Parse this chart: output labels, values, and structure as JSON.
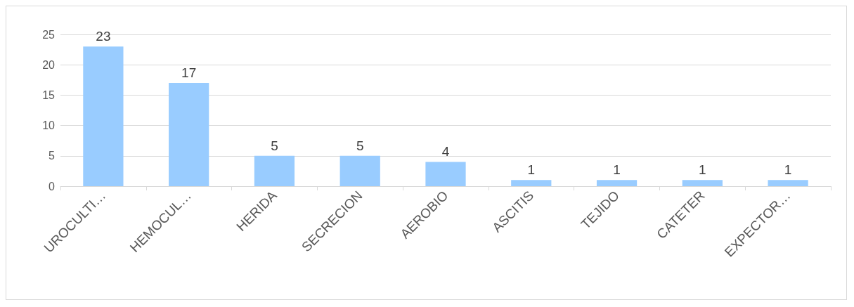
{
  "chart_data": {
    "type": "bar",
    "categories": [
      "UROCULTI…",
      "HEMOCUL…",
      "HERIDA",
      "SECRECION",
      "AEROBIO",
      "ASCITIS",
      "TEJIDO",
      "CATETER",
      "EXPECTOR…"
    ],
    "values": [
      23,
      17,
      5,
      5,
      4,
      1,
      1,
      1,
      1
    ],
    "color": "#99ccff",
    "ylim": [
      0,
      25
    ],
    "yticks": [
      0,
      5,
      10,
      15,
      20,
      25
    ],
    "grid": "y",
    "data_labels": true
  }
}
